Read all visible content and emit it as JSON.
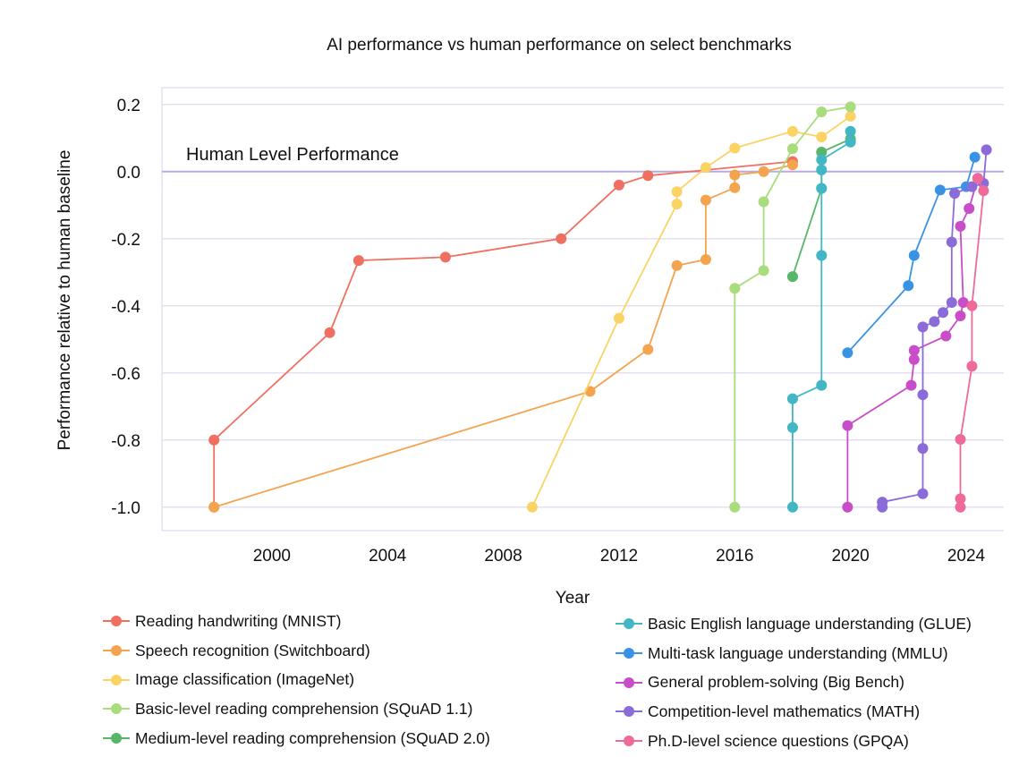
{
  "chart_data": {
    "type": "line",
    "title": "AI performance vs human performance on select benchmarks",
    "xlabel": "Year",
    "ylabel": "Performance relative to human baseline",
    "xlim": [
      1996.2,
      2025.3
    ],
    "ylim": [
      -1.07,
      0.25
    ],
    "xticks": [
      2000,
      2004,
      2008,
      2012,
      2016,
      2020,
      2024
    ],
    "yticks": [
      0.2,
      0.0,
      -0.2,
      -0.4,
      -0.6,
      -0.8,
      -1.0
    ],
    "ytick_labels": [
      "0.2",
      "0.0",
      "-0.2",
      "-0.4",
      "-0.6",
      "-0.8",
      "-1.0"
    ],
    "grid": "horizontal",
    "reference_line": {
      "y": 0.0,
      "label": "Human Level Performance",
      "color": "#b9a8ea"
    },
    "legend_position": "bottom",
    "series": [
      {
        "name": "Reading handwriting (MNIST)",
        "color": "#ef6f61",
        "points": [
          [
            1998.0,
            -1.0
          ],
          [
            1998.0,
            -0.8
          ],
          [
            2002.0,
            -0.48
          ],
          [
            2003.0,
            -0.265
          ],
          [
            2006.0,
            -0.255
          ],
          [
            2010.0,
            -0.2
          ],
          [
            2012.0,
            -0.04
          ],
          [
            2013.0,
            -0.012
          ],
          [
            2018.0,
            0.03
          ]
        ]
      },
      {
        "name": "Speech recognition (Switchboard)",
        "color": "#f4a44e",
        "points": [
          [
            1998.0,
            -1.0
          ],
          [
            2011.0,
            -0.655
          ],
          [
            2013.0,
            -0.53
          ],
          [
            2014.0,
            -0.28
          ],
          [
            2015.0,
            -0.262
          ],
          [
            2015.0,
            -0.085
          ],
          [
            2016.0,
            -0.048
          ],
          [
            2016.0,
            -0.01
          ],
          [
            2017.0,
            0.0
          ],
          [
            2018.0,
            0.02
          ]
        ]
      },
      {
        "name": "Image classification (ImageNet)",
        "color": "#fbd365",
        "points": [
          [
            2009.0,
            -1.0
          ],
          [
            2012.0,
            -0.437
          ],
          [
            2014.0,
            -0.097
          ],
          [
            2014.0,
            -0.06
          ],
          [
            2015.0,
            0.012
          ],
          [
            2016.0,
            0.07
          ],
          [
            2018.0,
            0.12
          ],
          [
            2019.0,
            0.103
          ],
          [
            2020.0,
            0.165
          ]
        ]
      },
      {
        "name": "Basic-level reading comprehension (SQuAD 1.1)",
        "color": "#a8dc7c",
        "points": [
          [
            2016.0,
            -1.0
          ],
          [
            2016.0,
            -0.348
          ],
          [
            2017.0,
            -0.295
          ],
          [
            2017.0,
            -0.09
          ],
          [
            2018.0,
            0.068
          ],
          [
            2019.0,
            0.178
          ],
          [
            2020.0,
            0.193
          ]
        ]
      },
      {
        "name": "Medium-level reading comprehension (SQuAD 2.0)",
        "color": "#57b768",
        "points": [
          [
            2018.0,
            -0.313
          ],
          [
            2019.0,
            -0.05
          ],
          [
            2019.0,
            0.058
          ],
          [
            2020.0,
            0.097
          ]
        ]
      },
      {
        "name": "Basic English language understanding (GLUE)",
        "color": "#41b6c4",
        "points": [
          [
            2018.0,
            -1.0
          ],
          [
            2018.0,
            -0.763
          ],
          [
            2018.0,
            -0.677
          ],
          [
            2019.0,
            -0.637
          ],
          [
            2019.0,
            -0.25
          ],
          [
            2019.0,
            -0.05
          ],
          [
            2019.0,
            0.005
          ],
          [
            2019.0,
            0.035
          ],
          [
            2020.0,
            0.088
          ],
          [
            2020.0,
            0.12
          ]
        ]
      },
      {
        "name": "Multi-task language understanding (MMLU)",
        "color": "#3893e5",
        "points": [
          [
            2019.9,
            -0.54
          ],
          [
            2022.0,
            -0.34
          ],
          [
            2022.2,
            -0.25
          ],
          [
            2023.1,
            -0.055
          ],
          [
            2024.0,
            -0.045
          ],
          [
            2024.3,
            0.043
          ]
        ]
      },
      {
        "name": "General problem-solving (Big Bench)",
        "color": "#c94dc8",
        "points": [
          [
            2019.9,
            -1.0
          ],
          [
            2019.9,
            -0.757
          ],
          [
            2022.1,
            -0.637
          ],
          [
            2022.2,
            -0.56
          ],
          [
            2022.2,
            -0.533
          ],
          [
            2023.3,
            -0.49
          ],
          [
            2023.8,
            -0.43
          ],
          [
            2023.9,
            -0.39
          ],
          [
            2023.8,
            -0.163
          ],
          [
            2024.1,
            -0.11
          ],
          [
            2024.4,
            -0.02
          ]
        ]
      },
      {
        "name": "Competition-level mathematics (MATH)",
        "color": "#8a6bd8",
        "points": [
          [
            2021.1,
            -1.0
          ],
          [
            2021.1,
            -0.985
          ],
          [
            2022.5,
            -0.96
          ],
          [
            2022.5,
            -0.825
          ],
          [
            2022.5,
            -0.665
          ],
          [
            2022.5,
            -0.463
          ],
          [
            2022.9,
            -0.447
          ],
          [
            2023.2,
            -0.42
          ],
          [
            2023.5,
            -0.39
          ],
          [
            2023.5,
            -0.21
          ],
          [
            2023.6,
            -0.065
          ],
          [
            2024.2,
            -0.045
          ],
          [
            2024.6,
            -0.035
          ],
          [
            2024.7,
            0.065
          ]
        ]
      },
      {
        "name": "Ph.D-level science questions (GPQA)",
        "color": "#ee6a9a",
        "points": [
          [
            2023.8,
            -1.0
          ],
          [
            2023.8,
            -0.975
          ],
          [
            2023.8,
            -0.798
          ],
          [
            2024.2,
            -0.58
          ],
          [
            2024.2,
            -0.4
          ],
          [
            2024.6,
            -0.057
          ],
          [
            2024.4,
            -0.02
          ]
        ]
      }
    ]
  }
}
